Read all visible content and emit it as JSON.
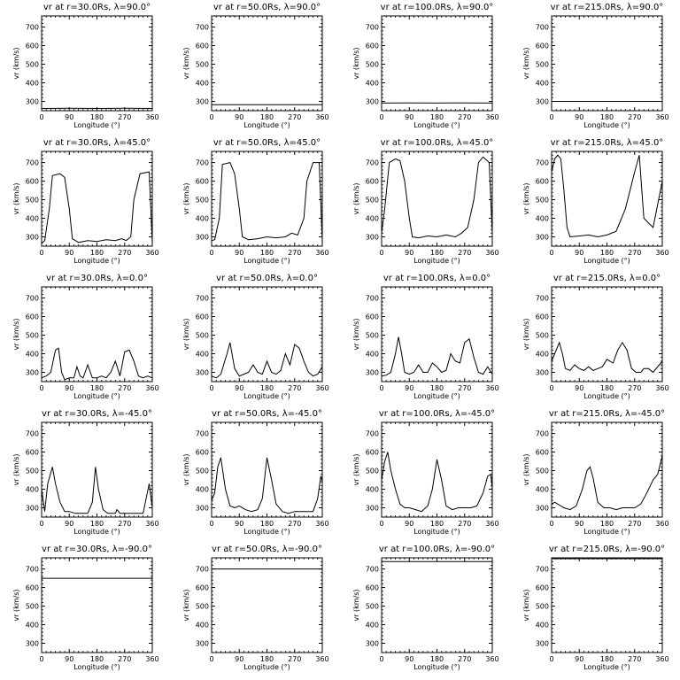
{
  "chart_data": {
    "type": "line",
    "xlabel": "Longitude (°)",
    "ylabel": "vr (km/s)",
    "xlim": [
      0,
      360
    ],
    "ylim": [
      250,
      760
    ],
    "xticks": [
      0,
      90,
      180,
      270,
      360
    ],
    "yticks": [
      300,
      400,
      500,
      600,
      700
    ],
    "grid": false,
    "panels": [
      {
        "title": "vr at r=30.0Rs, λ=90.0°",
        "x": [
          0,
          90,
          180,
          270,
          360
        ],
        "y": [
          262,
          263,
          262,
          263,
          262
        ]
      },
      {
        "title": "vr at r=50.0Rs, λ=90.0°",
        "x": [
          0,
          90,
          180,
          270,
          360
        ],
        "y": [
          282,
          282,
          282,
          282,
          282
        ]
      },
      {
        "title": "vr at r=100.0Rs, λ=90.0°",
        "x": [
          0,
          90,
          180,
          270,
          360
        ],
        "y": [
          291,
          292,
          291,
          292,
          291
        ]
      },
      {
        "title": "vr at r=215.0Rs, λ=90.0°",
        "x": [
          0,
          90,
          180,
          270,
          360
        ],
        "y": [
          300,
          300,
          300,
          300,
          300
        ]
      },
      {
        "title": "vr at r=30.0Rs, λ=45.0°",
        "x": [
          0,
          10,
          25,
          35,
          60,
          75,
          90,
          100,
          120,
          150,
          180,
          210,
          240,
          260,
          275,
          290,
          300,
          320,
          350,
          360
        ],
        "y": [
          265,
          280,
          450,
          630,
          640,
          620,
          450,
          290,
          270,
          280,
          275,
          285,
          280,
          290,
          280,
          300,
          500,
          640,
          650,
          270
        ]
      },
      {
        "title": "vr at r=50.0Rs, λ=45.0°",
        "x": [
          0,
          10,
          25,
          35,
          60,
          75,
          90,
          100,
          120,
          150,
          180,
          210,
          240,
          260,
          280,
          300,
          310,
          330,
          350,
          360
        ],
        "y": [
          280,
          285,
          400,
          690,
          700,
          640,
          450,
          300,
          285,
          290,
          300,
          295,
          300,
          320,
          310,
          400,
          600,
          700,
          700,
          280
        ]
      },
      {
        "title": "vr at r=100.0Rs, λ=45.0°",
        "x": [
          0,
          10,
          25,
          45,
          60,
          75,
          90,
          100,
          120,
          150,
          180,
          210,
          240,
          260,
          280,
          300,
          315,
          330,
          350,
          360
        ],
        "y": [
          320,
          450,
          700,
          720,
          710,
          600,
          400,
          300,
          295,
          305,
          300,
          310,
          300,
          320,
          350,
          500,
          700,
          730,
          700,
          320
        ]
      },
      {
        "title": "vr at r=215.0Rs, λ=45.0°",
        "x": [
          0,
          10,
          20,
          30,
          40,
          50,
          60,
          90,
          120,
          150,
          180,
          210,
          240,
          270,
          285,
          300,
          330,
          360
        ],
        "y": [
          650,
          720,
          740,
          720,
          550,
          350,
          300,
          305,
          310,
          300,
          310,
          330,
          450,
          650,
          740,
          400,
          350,
          600
        ]
      },
      {
        "title": "vr at r=30.0Rs, λ=0.0°",
        "x": [
          0,
          15,
          30,
          45,
          55,
          65,
          75,
          90,
          105,
          115,
          125,
          135,
          150,
          165,
          180,
          195,
          210,
          225,
          240,
          255,
          270,
          285,
          300,
          315,
          330,
          345,
          360
        ],
        "y": [
          270,
          280,
          300,
          420,
          430,
          300,
          260,
          270,
          270,
          330,
          280,
          270,
          340,
          270,
          270,
          280,
          270,
          300,
          360,
          280,
          410,
          420,
          360,
          280,
          270,
          280,
          270
        ]
      },
      {
        "title": "vr at r=50.0Rs, λ=0.0°",
        "x": [
          0,
          15,
          30,
          50,
          60,
          75,
          90,
          105,
          120,
          135,
          150,
          165,
          180,
          195,
          210,
          225,
          240,
          255,
          270,
          285,
          300,
          315,
          330,
          345,
          360
        ],
        "y": [
          280,
          270,
          290,
          400,
          460,
          320,
          280,
          290,
          300,
          340,
          300,
          290,
          360,
          300,
          290,
          310,
          400,
          340,
          450,
          430,
          360,
          300,
          280,
          290,
          330
        ]
      },
      {
        "title": "vr at r=100.0Rs, λ=0.0°",
        "x": [
          0,
          15,
          30,
          45,
          55,
          65,
          75,
          90,
          105,
          120,
          135,
          150,
          165,
          180,
          195,
          210,
          225,
          240,
          255,
          270,
          285,
          300,
          315,
          330,
          345,
          360
        ],
        "y": [
          280,
          285,
          300,
          400,
          490,
          400,
          300,
          290,
          300,
          340,
          300,
          300,
          350,
          330,
          300,
          310,
          400,
          360,
          350,
          460,
          480,
          380,
          300,
          290,
          330,
          290
        ]
      },
      {
        "title": "vr at r=215.0Rs, λ=0.0°",
        "x": [
          0,
          15,
          25,
          35,
          45,
          60,
          75,
          90,
          105,
          120,
          135,
          150,
          165,
          180,
          200,
          215,
          230,
          245,
          260,
          275,
          290,
          300,
          315,
          330,
          345,
          360
        ],
        "y": [
          360,
          420,
          460,
          400,
          320,
          310,
          340,
          320,
          310,
          330,
          310,
          320,
          330,
          370,
          350,
          420,
          460,
          420,
          320,
          300,
          300,
          320,
          320,
          300,
          330,
          360
        ]
      },
      {
        "title": "vr at r=30.0Rs, λ=-45.0°",
        "x": [
          0,
          10,
          20,
          35,
          45,
          60,
          75,
          90,
          110,
          130,
          150,
          165,
          175,
          185,
          200,
          215,
          240,
          245,
          255,
          270,
          300,
          330,
          350,
          360
        ],
        "y": [
          400,
          280,
          430,
          520,
          430,
          330,
          280,
          280,
          270,
          270,
          270,
          330,
          520,
          400,
          290,
          270,
          270,
          290,
          270,
          270,
          270,
          270,
          430,
          300
        ]
      },
      {
        "title": "vr at r=50.0Rs, λ=-45.0°",
        "x": [
          0,
          10,
          20,
          30,
          45,
          60,
          75,
          90,
          110,
          130,
          150,
          165,
          180,
          195,
          210,
          230,
          250,
          270,
          290,
          310,
          330,
          345,
          355,
          360
        ],
        "y": [
          340,
          380,
          520,
          570,
          400,
          310,
          300,
          310,
          290,
          280,
          290,
          350,
          570,
          450,
          320,
          280,
          270,
          280,
          280,
          280,
          280,
          350,
          470,
          440
        ]
      },
      {
        "title": "vr at r=100.0Rs, λ=-45.0°",
        "x": [
          0,
          10,
          20,
          30,
          45,
          60,
          75,
          90,
          110,
          130,
          150,
          165,
          180,
          195,
          210,
          230,
          250,
          270,
          290,
          310,
          330,
          345,
          355,
          360
        ],
        "y": [
          450,
          550,
          600,
          500,
          400,
          320,
          300,
          300,
          290,
          280,
          310,
          400,
          560,
          450,
          310,
          290,
          300,
          300,
          300,
          310,
          380,
          470,
          480,
          400
        ]
      },
      {
        "title": "vr at r=215.0Rs, λ=-45.0°",
        "x": [
          0,
          10,
          20,
          40,
          60,
          80,
          100,
          115,
          125,
          135,
          150,
          170,
          190,
          210,
          230,
          250,
          270,
          290,
          310,
          330,
          345,
          360
        ],
        "y": [
          320,
          330,
          320,
          300,
          290,
          310,
          400,
          500,
          520,
          460,
          330,
          300,
          300,
          290,
          300,
          300,
          300,
          320,
          380,
          450,
          480,
          580
        ]
      },
      {
        "title": "vr at r=30.0Rs, λ=-90.0°",
        "x": [
          0,
          90,
          180,
          270,
          360
        ],
        "y": [
          650,
          650,
          650,
          650,
          650
        ]
      },
      {
        "title": "vr at r=50.0Rs, λ=-90.0°",
        "x": [
          0,
          90,
          180,
          270,
          360
        ],
        "y": [
          700,
          700,
          700,
          700,
          700
        ]
      },
      {
        "title": "vr at r=100.0Rs, λ=-90.0°",
        "x": [
          0,
          90,
          180,
          270,
          360
        ],
        "y": [
          740,
          740,
          740,
          740,
          740
        ]
      },
      {
        "title": "vr at r=215.0Rs, λ=-90.0°",
        "x": [
          0,
          90,
          180,
          270,
          360
        ],
        "y": [
          755,
          755,
          755,
          755,
          755
        ]
      }
    ]
  }
}
